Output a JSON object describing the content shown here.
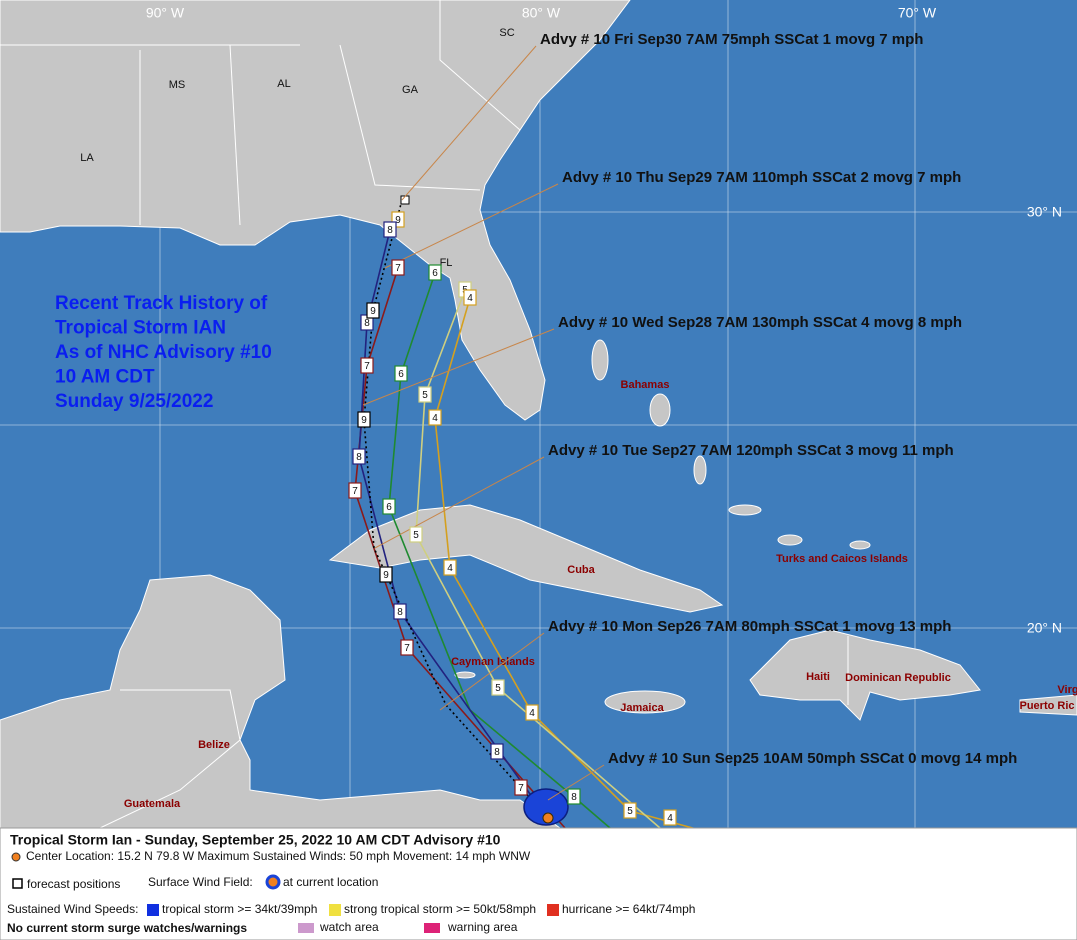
{
  "map": {
    "lon_labels": [
      "90° W",
      "80° W",
      "70° W"
    ],
    "lat_labels": [
      "30° N",
      "20° N"
    ],
    "places": [
      "SC",
      "MS",
      "AL",
      "GA",
      "LA",
      "FL",
      "Bahamas",
      "Cuba",
      "Turks and Caicos Islands",
      "Haiti",
      "Dominican Republic",
      "Jamaica",
      "Cayman Islands",
      "Belize",
      "Guatemala",
      "Virg",
      "Puerto Ric"
    ]
  },
  "overlay": {
    "title_lines": [
      "Recent Track History of",
      "Tropical Storm IAN",
      "As of NHC Advisory #10",
      "10 AM CDT",
      "Sunday 9/25/2022"
    ]
  },
  "advisories": [
    "Advy # 10 Fri Sep30 7AM  75mph SSCat 1 movg 7 mph",
    "Advy # 10 Thu Sep29 7AM  110mph SSCat 2 movg 7 mph",
    "Advy # 10 Wed Sep28 7AM  130mph SSCat 4 movg 8 mph",
    "Advy # 10 Tue Sep27 7AM  120mph SSCat 3 movg 11 mph",
    "Advy # 10 Mon Sep26 7AM  80mph SSCat 1 movg 13 mph",
    "Advy # 10 Sun Sep25 10AM  50mph SSCat 0 movg 14 mph"
  ],
  "track_markers": [
    "9",
    "8",
    "7",
    "6",
    "5",
    "4",
    "8",
    "9",
    "7",
    "6",
    "5",
    "4",
    "9",
    "8",
    "7",
    "6",
    "5",
    "4",
    "9",
    "8",
    "7",
    "5",
    "4",
    "8",
    "7",
    "8",
    "5",
    "4"
  ],
  "legend": {
    "title": "Tropical Storm Ian  -  Sunday, September 25, 2022  10 AM CDT   Advisory #10",
    "center": "Center Location: 15.2 N  79.8 W  Maximum Sustained Winds: 50 mph  Movement: 14 mph WNW",
    "forecast": "forecast positions",
    "wind_field": "Surface Wind Field:",
    "current": "at current location",
    "speeds": "Sustained Wind Speeds:",
    "ts": "tropical storm >= 34kt/39mph",
    "sts": "strong tropical storm >= 50kt/58mph",
    "hu": "hurricane >= 64kt/74mph",
    "surge": "No current storm surge watches/warnings",
    "watch": "watch area",
    "warning": "warning area"
  }
}
